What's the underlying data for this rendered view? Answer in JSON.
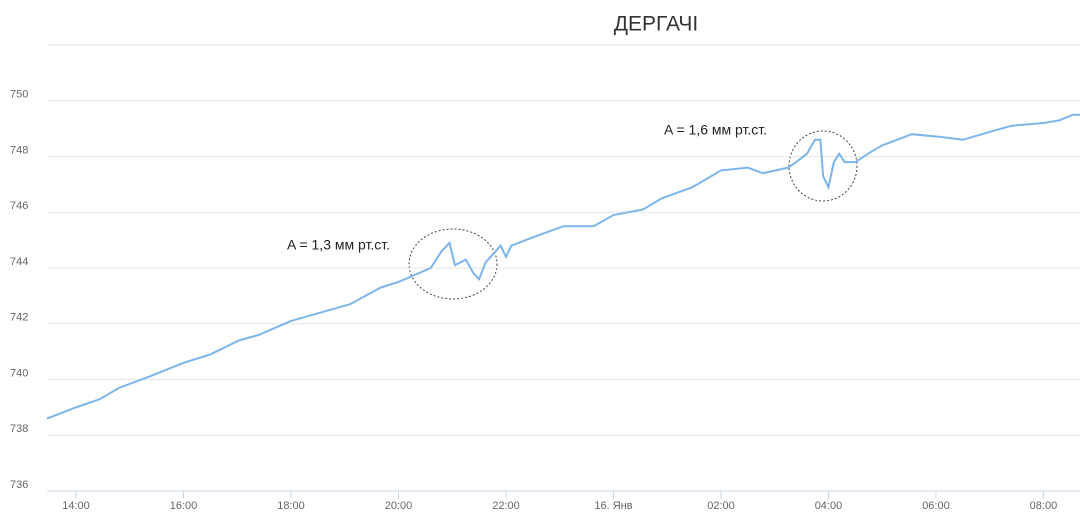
{
  "chart_data": {
    "type": "line",
    "title": "ДЕРГАЧІ",
    "annotations": [
      "A = 1,3 мм рт.ст.",
      "A = 1,6 мм рт.ст."
    ],
    "xlim": [
      13.46,
      32.68
    ],
    "ylim": [
      736,
      752
    ],
    "xticks": [
      {
        "value": 14,
        "label": "14:00"
      },
      {
        "value": 16,
        "label": "16:00"
      },
      {
        "value": 18,
        "label": "18:00"
      },
      {
        "value": 20,
        "label": "20:00"
      },
      {
        "value": 22,
        "label": "22:00"
      },
      {
        "value": 24,
        "label": "16. Янв"
      },
      {
        "value": 26,
        "label": "02:00"
      },
      {
        "value": 28,
        "label": "04:00"
      },
      {
        "value": 30,
        "label": "06:00"
      },
      {
        "value": 32,
        "label": "08:00"
      }
    ],
    "yticks": [
      736,
      738,
      740,
      742,
      744,
      746,
      748,
      750
    ],
    "grid": true,
    "series": [
      {
        "color": "#7cb5ec",
        "x": [
          13.46,
          14,
          14.45,
          14.8,
          15.36,
          16,
          16.5,
          17.03,
          17.4,
          18,
          18.55,
          19.1,
          19.67,
          20,
          20.6,
          20.8,
          20.95,
          21.05,
          21.25,
          21.4,
          21.5,
          21.62,
          21.9,
          22.0,
          22.1,
          22.5,
          23.07,
          23.63,
          24.0,
          24.55,
          24.9,
          25.47,
          26.0,
          26.5,
          26.78,
          27.25,
          27.4,
          27.6,
          27.75,
          27.85,
          27.9,
          28.0,
          28.1,
          28.2,
          28.3,
          28.5,
          28.82,
          29.0,
          29.55,
          30.1,
          30.5,
          31.03,
          31.4,
          32,
          32.3,
          32.55,
          32.68
        ],
        "values": [
          738.6,
          739.0,
          739.3,
          739.7,
          740.1,
          740.6,
          740.9,
          741.4,
          741.6,
          742.1,
          742.4,
          742.7,
          743.3,
          743.5,
          744.0,
          744.6,
          744.9,
          744.1,
          744.3,
          743.8,
          743.6,
          744.2,
          744.8,
          744.4,
          744.8,
          745.1,
          745.5,
          745.5,
          745.9,
          746.1,
          746.5,
          746.9,
          747.5,
          747.6,
          747.4,
          747.6,
          747.8,
          748.1,
          748.6,
          748.6,
          747.3,
          746.9,
          747.8,
          748.1,
          747.8,
          747.8,
          748.2,
          748.4,
          748.8,
          748.7,
          748.6,
          748.9,
          749.1,
          749.2,
          749.3,
          749.5,
          749.5
        ]
      }
    ]
  }
}
